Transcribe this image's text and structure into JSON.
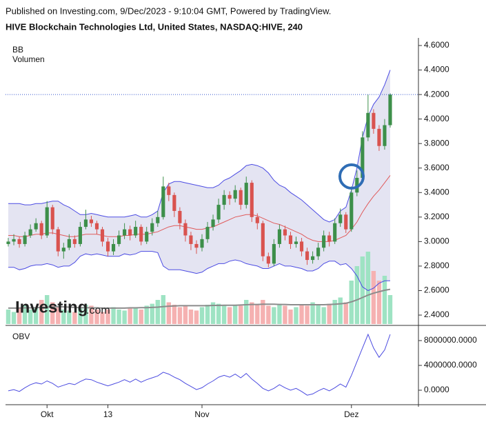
{
  "chart_data": [
    {
      "type": "candlestick",
      "source": "Published on Investing.com, 9/Dec/2023 - 9:10:04 GMT, Powered by TradingView.",
      "title": "HIVE Blockchain Technologies Ltd, United States, NASDAQ:HIVE, 240",
      "watermark": [
        "Investing",
        ".com"
      ],
      "up_color": "#3d8f4a",
      "down_color": "#d9534f",
      "ylim": [
        2.327,
        4.662
      ],
      "yticks": [
        {
          "value": 2.4,
          "label": "2.4000"
        },
        {
          "value": 2.6,
          "label": "2.6000"
        },
        {
          "value": 2.8,
          "label": "2.8000"
        },
        {
          "value": 3.0,
          "label": "3.0000"
        },
        {
          "value": 3.2,
          "label": "3.2000"
        },
        {
          "value": 3.4,
          "label": "3.4000"
        },
        {
          "value": 3.6,
          "label": "3.6000"
        },
        {
          "value": 3.8,
          "label": "3.8000"
        },
        {
          "value": 4.0,
          "label": "4.0000"
        },
        {
          "value": 4.2,
          "label": "4.2000"
        },
        {
          "value": 4.4,
          "label": "4.4000"
        },
        {
          "value": 4.6,
          "label": "4.6000"
        }
      ],
      "open": [
        2.98,
        3.0,
        3.02,
        2.98,
        3.05,
        3.1,
        3.15,
        3.05,
        3.28,
        3.1,
        2.92,
        2.95,
        3.02,
        2.98,
        3.12,
        3.18,
        3.15,
        3.1,
        3.0,
        2.92,
        2.98,
        3.05,
        3.1,
        3.05,
        3.12,
        3.0,
        3.08,
        3.15,
        3.2,
        3.45,
        3.38,
        3.25,
        3.15,
        3.05,
        2.98,
        2.95,
        3.02,
        3.12,
        3.18,
        3.3,
        3.38,
        3.35,
        3.42,
        3.3,
        3.48,
        3.2,
        3.15,
        2.88,
        2.82,
        2.98,
        3.1,
        3.05,
        2.98,
        3.0,
        2.92,
        2.85,
        2.88,
        2.95,
        3.05,
        3.0,
        3.15,
        3.22,
        3.1,
        3.4,
        3.52,
        3.85,
        4.05,
        3.92,
        3.78,
        3.95
      ],
      "high": [
        3.03,
        3.06,
        3.04,
        3.08,
        3.14,
        3.19,
        3.17,
        3.33,
        3.3,
        3.12,
        2.99,
        3.06,
        3.05,
        3.16,
        3.26,
        3.21,
        3.17,
        3.12,
        3.03,
        3.02,
        3.09,
        3.15,
        3.13,
        3.17,
        3.14,
        3.12,
        3.19,
        3.25,
        3.53,
        3.48,
        3.4,
        3.28,
        3.18,
        3.08,
        3.01,
        3.06,
        3.16,
        3.22,
        3.35,
        3.42,
        3.41,
        3.46,
        3.44,
        3.53,
        3.5,
        3.23,
        3.17,
        2.91,
        3.02,
        3.14,
        3.13,
        3.08,
        3.04,
        3.03,
        2.95,
        2.92,
        2.99,
        3.09,
        3.08,
        3.19,
        3.27,
        3.24,
        3.45,
        3.58,
        3.9,
        4.2,
        4.08,
        3.95,
        4.0,
        4.21
      ],
      "low": [
        2.96,
        2.97,
        2.95,
        2.96,
        3.03,
        3.08,
        3.02,
        3.03,
        3.06,
        2.88,
        2.86,
        2.93,
        2.95,
        2.96,
        3.1,
        3.12,
        3.06,
        2.96,
        2.88,
        2.89,
        2.96,
        3.02,
        3.01,
        3.03,
        2.97,
        2.98,
        3.05,
        3.12,
        3.18,
        3.33,
        3.2,
        3.1,
        3.0,
        2.93,
        2.9,
        2.92,
        2.99,
        3.09,
        3.15,
        3.26,
        3.3,
        3.32,
        3.26,
        3.27,
        3.16,
        3.1,
        2.84,
        2.79,
        2.8,
        2.95,
        3.01,
        2.94,
        2.95,
        2.88,
        2.81,
        2.82,
        2.85,
        2.92,
        2.96,
        2.98,
        3.12,
        3.07,
        3.08,
        3.37,
        3.5,
        3.82,
        3.88,
        3.74,
        3.75,
        3.93
      ],
      "close": [
        3.0,
        3.02,
        2.98,
        3.05,
        3.1,
        3.15,
        3.05,
        3.28,
        3.1,
        2.92,
        2.95,
        3.02,
        2.98,
        3.12,
        3.18,
        3.15,
        3.1,
        3.0,
        2.92,
        2.98,
        3.05,
        3.1,
        3.05,
        3.12,
        3.0,
        3.08,
        3.15,
        3.2,
        3.45,
        3.38,
        3.25,
        3.15,
        3.05,
        2.98,
        2.95,
        3.02,
        3.12,
        3.18,
        3.3,
        3.38,
        3.35,
        3.42,
        3.3,
        3.48,
        3.2,
        3.15,
        2.88,
        2.82,
        2.98,
        3.1,
        3.05,
        2.98,
        3.0,
        2.92,
        2.85,
        2.88,
        2.95,
        3.05,
        3.0,
        3.15,
        3.22,
        3.1,
        3.4,
        3.52,
        3.85,
        4.05,
        3.92,
        3.78,
        3.95,
        4.2
      ],
      "bollinger": {
        "name": "BB",
        "band_color": "#e4e4f2",
        "edge_color": "#4b4be3",
        "mid_color": "#e05a5a",
        "upper": [
          3.31,
          3.31,
          3.31,
          3.3,
          3.3,
          3.31,
          3.31,
          3.32,
          3.33,
          3.33,
          3.3,
          3.28,
          3.25,
          3.22,
          3.22,
          3.23,
          3.22,
          3.21,
          3.2,
          3.2,
          3.2,
          3.2,
          3.21,
          3.22,
          3.2,
          3.2,
          3.22,
          3.25,
          3.4,
          3.47,
          3.49,
          3.49,
          3.48,
          3.47,
          3.46,
          3.45,
          3.44,
          3.44,
          3.46,
          3.5,
          3.52,
          3.55,
          3.58,
          3.62,
          3.63,
          3.62,
          3.6,
          3.56,
          3.5,
          3.46,
          3.44,
          3.4,
          3.37,
          3.34,
          3.3,
          3.26,
          3.22,
          3.18,
          3.16,
          3.18,
          3.25,
          3.28,
          3.42,
          3.6,
          3.85,
          4.02,
          4.12,
          4.18,
          4.28,
          4.4
        ],
        "middle": [
          3.05,
          3.05,
          3.04,
          3.04,
          3.05,
          3.06,
          3.06,
          3.07,
          3.07,
          3.06,
          3.05,
          3.04,
          3.04,
          3.05,
          3.06,
          3.06,
          3.06,
          3.05,
          3.04,
          3.04,
          3.04,
          3.05,
          3.05,
          3.06,
          3.06,
          3.06,
          3.07,
          3.08,
          3.1,
          3.12,
          3.13,
          3.13,
          3.12,
          3.11,
          3.1,
          3.1,
          3.11,
          3.12,
          3.14,
          3.16,
          3.18,
          3.2,
          3.21,
          3.22,
          3.22,
          3.21,
          3.19,
          3.17,
          3.15,
          3.14,
          3.12,
          3.1,
          3.08,
          3.06,
          3.03,
          3.01,
          3.0,
          3.0,
          3.0,
          3.01,
          3.03,
          3.05,
          3.1,
          3.16,
          3.24,
          3.31,
          3.37,
          3.42,
          3.48,
          3.54
        ],
        "lower": [
          2.79,
          2.79,
          2.77,
          2.78,
          2.8,
          2.81,
          2.81,
          2.82,
          2.81,
          2.79,
          2.8,
          2.8,
          2.83,
          2.88,
          2.9,
          2.89,
          2.9,
          2.89,
          2.88,
          2.88,
          2.88,
          2.9,
          2.89,
          2.9,
          2.92,
          2.92,
          2.92,
          2.91,
          2.8,
          2.77,
          2.77,
          2.77,
          2.76,
          2.75,
          2.74,
          2.75,
          2.78,
          2.8,
          2.82,
          2.82,
          2.84,
          2.85,
          2.84,
          2.82,
          2.81,
          2.8,
          2.78,
          2.78,
          2.8,
          2.82,
          2.8,
          2.8,
          2.79,
          2.78,
          2.76,
          2.76,
          2.78,
          2.82,
          2.84,
          2.84,
          2.81,
          2.82,
          2.78,
          2.72,
          2.63,
          2.6,
          2.62,
          2.66,
          2.68,
          2.68
        ]
      },
      "volume": {
        "name": "Volumen",
        "up_color": "#9ee3c3",
        "down_color": "#f5b1b1",
        "ma_color": "#8c8c8c",
        "values": [
          300,
          250,
          350,
          400,
          300,
          350,
          500,
          600,
          450,
          350,
          300,
          280,
          250,
          350,
          400,
          380,
          300,
          250,
          300,
          350,
          300,
          280,
          320,
          350,
          300,
          380,
          420,
          500,
          600,
          450,
          400,
          350,
          380,
          300,
          280,
          350,
          400,
          450,
          420,
          380,
          350,
          400,
          380,
          500,
          450,
          400,
          500,
          380,
          350,
          420,
          380,
          300,
          350,
          400,
          380,
          450,
          400,
          350,
          420,
          500,
          550,
          450,
          900,
          1200,
          1400,
          1500,
          1100,
          900,
          1000,
          600
        ],
        "ma": [
          330,
          330,
          330,
          335,
          335,
          340,
          345,
          350,
          355,
          360,
          355,
          350,
          345,
          340,
          340,
          335,
          335,
          330,
          330,
          330,
          330,
          330,
          335,
          335,
          340,
          340,
          345,
          350,
          360,
          370,
          375,
          380,
          380,
          380,
          380,
          380,
          380,
          385,
          385,
          390,
          390,
          390,
          395,
          400,
          405,
          405,
          410,
          410,
          410,
          405,
          405,
          400,
          400,
          400,
          400,
          400,
          400,
          400,
          405,
          410,
          420,
          430,
          460,
          500,
          550,
          600,
          640,
          670,
          700,
          720
        ]
      }
    },
    {
      "type": "line",
      "label": "OBV",
      "color": "#4a4ae0",
      "categories": [
        null,
        null,
        null,
        null,
        null,
        null,
        null,
        "Okt",
        null,
        null,
        null,
        null,
        null,
        null,
        null,
        null,
        null,
        null,
        "13",
        null,
        null,
        null,
        null,
        null,
        null,
        null,
        null,
        null,
        null,
        null,
        null,
        null,
        null,
        null,
        null,
        "Nov",
        null,
        null,
        null,
        null,
        null,
        null,
        null,
        null,
        null,
        null,
        null,
        null,
        null,
        null,
        null,
        null,
        null,
        null,
        null,
        null,
        null,
        null,
        null,
        null,
        null,
        null,
        "Dez",
        null,
        null,
        null,
        null,
        null,
        null,
        null
      ],
      "ylim": [
        -2110000,
        9890000
      ],
      "yticks": [
        {
          "value": 0,
          "label": "0.0000"
        },
        {
          "value": 4000000,
          "label": "4000000.0000"
        },
        {
          "value": 8000000,
          "label": "8000000.0000"
        }
      ],
      "values": [
        -100000,
        100000,
        -200000,
        400000,
        900000,
        1200000,
        1000000,
        1500000,
        1100000,
        500000,
        800000,
        1100000,
        900000,
        1400000,
        1800000,
        1700000,
        1300000,
        1000000,
        700000,
        1000000,
        1300000,
        1700000,
        1300000,
        1800000,
        1300000,
        1700000,
        2000000,
        2300000,
        2900000,
        2600000,
        2100000,
        1700000,
        1100000,
        600000,
        100000,
        400000,
        1000000,
        1500000,
        2100000,
        2400000,
        2100000,
        2600000,
        2000000,
        2700000,
        1800000,
        1100000,
        300000,
        -100000,
        300000,
        900000,
        400000,
        0,
        300000,
        -200000,
        -800000,
        -600000,
        -100000,
        300000,
        -100000,
        400000,
        1000000,
        500000,
        2400000,
        4600000,
        6800000,
        9000000,
        6800000,
        5300000,
        6500000,
        9000000
      ]
    }
  ]
}
